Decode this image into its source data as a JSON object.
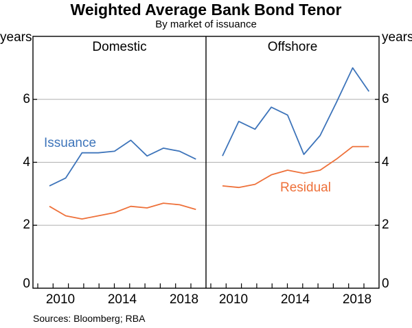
{
  "header": {
    "title": "Weighted Average Bank Bond Tenor",
    "subtitle": "By market of issuance"
  },
  "axis": {
    "unit_left": "years",
    "unit_right": "years"
  },
  "footer": {
    "sources": "Sources: Bloomberg; RBA"
  },
  "colors": {
    "issuance": "#3d74ba",
    "residual": "#ee7039",
    "grid": "#b0b0b0",
    "axis": "#000000"
  },
  "chart_data": {
    "type": "line",
    "title": "Weighted Average Bank Bond Tenor",
    "subtitle": "By market of issuance",
    "unit": "years",
    "ylim": [
      0,
      8
    ],
    "yticks": [
      0,
      2,
      4,
      6
    ],
    "grid_values": [
      2,
      4,
      6
    ],
    "grid": true,
    "legend_position": "inline-labels",
    "x": [
      2009,
      2010,
      2011,
      2012,
      2013,
      2014,
      2015,
      2016,
      2017,
      2018
    ],
    "xtick_labels": [
      "2010",
      "2014",
      "2018"
    ],
    "panels": [
      {
        "title": "Domestic",
        "series": [
          {
            "name": "Issuance",
            "color": "#3d74ba",
            "values": [
              3.25,
              3.5,
              4.3,
              4.3,
              4.35,
              4.7,
              4.2,
              4.45,
              4.35,
              4.1
            ]
          },
          {
            "name": "Residual",
            "color": "#ee7039",
            "values": [
              2.6,
              2.3,
              2.2,
              2.3,
              2.4,
              2.6,
              2.55,
              2.7,
              2.65,
              2.5
            ]
          }
        ]
      },
      {
        "title": "Offshore",
        "series": [
          {
            "name": "Issuance",
            "color": "#3d74ba",
            "values": [
              4.2,
              5.3,
              5.05,
              5.75,
              5.5,
              4.25,
              4.85,
              5.9,
              7.0,
              6.25
            ]
          },
          {
            "name": "Residual",
            "color": "#ee7039",
            "values": [
              3.25,
              3.2,
              3.3,
              3.6,
              3.75,
              3.65,
              3.75,
              4.1,
              4.5,
              4.5
            ]
          }
        ]
      }
    ]
  }
}
